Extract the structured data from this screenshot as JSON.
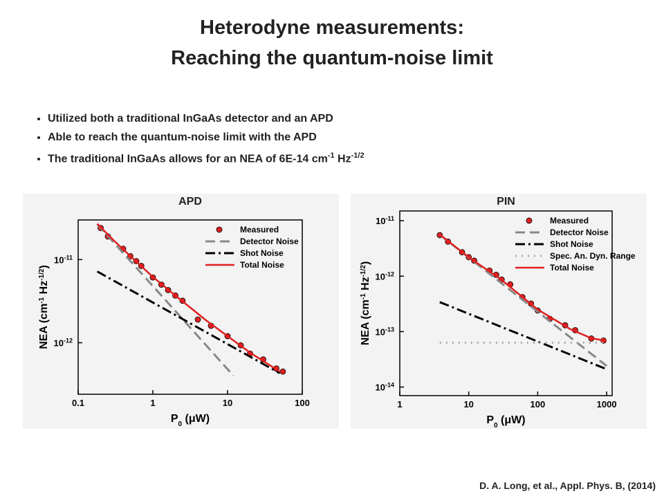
{
  "title": [
    "Heterodyne measurements:",
    "Reaching the quantum-noise limit"
  ],
  "bullets": [
    [
      {
        "text": "Utilized both a traditional InGaAs detector and an APD"
      }
    ],
    [
      {
        "text": "Able to reach the quantum-noise limit with the APD"
      }
    ],
    [
      {
        "text": "The traditional InGaAs allows for an NEA of 6E-14 cm"
      },
      {
        "text": "-1",
        "shift": "super"
      },
      {
        "text": " Hz"
      },
      {
        "text": "-1/2",
        "shift": "super"
      }
    ]
  ],
  "citation": "D. A. Long, et al., Appl. Phys. B, (2014)",
  "chart_data": [
    {
      "type": "line",
      "title": "APD",
      "log_x": true,
      "log_y": true,
      "legend": "upper right",
      "xlabel": [
        {
          "text": "P"
        },
        {
          "text": "0",
          "shift": "sub"
        },
        {
          "text": " (μW)"
        }
      ],
      "ylabel": [
        {
          "text": "NEA (cm"
        },
        {
          "text": "-1",
          "shift": "super"
        },
        {
          "text": " Hz"
        },
        {
          "text": "-1/2",
          "shift": "super"
        },
        {
          "text": ")"
        }
      ],
      "xlim": [
        0.1,
        100
      ],
      "ylim": [
        2.4e-13,
        3e-11
      ],
      "xticks": [
        0.1,
        1,
        10,
        100
      ],
      "yticks": [
        {
          "value": 1e-11,
          "label": "10",
          "exponent": "-11"
        },
        {
          "value": 1e-12,
          "label": "10",
          "exponent": "-12"
        }
      ],
      "series": [
        {
          "name": "Measured",
          "style": "points",
          "color": "#e02020",
          "x": [
            0.2,
            0.25,
            0.4,
            0.5,
            0.6,
            0.7,
            1,
            1.3,
            1.6,
            2,
            2.5,
            4,
            6,
            10,
            15,
            20,
            30,
            45,
            55
          ],
          "values": [
            2.4e-11,
            1.9e-11,
            1.35e-11,
            1.1e-11,
            9.6e-12,
            8.4e-12,
            6.1e-12,
            5e-12,
            4.3e-12,
            3.7e-12,
            3.2e-12,
            1.9e-12,
            1.6e-12,
            1.2e-12,
            9.3e-13,
            7.4e-13,
            6.3e-13,
            4.9e-13,
            4.5e-13
          ]
        },
        {
          "name": "Detector Noise",
          "style": "dashed",
          "color": "#888888",
          "x": [
            0.18,
            12
          ],
          "values": [
            2.67e-11,
            4e-13
          ]
        },
        {
          "name": "Shot Noise",
          "style": "dashdot",
          "color": "#000000",
          "x": [
            0.18,
            50
          ],
          "values": [
            7.2e-12,
            4.3e-13
          ]
        },
        {
          "name": "Total Noise",
          "style": "solid",
          "color": "#e02020",
          "x": [
            0.18,
            0.3,
            0.5,
            1,
            2,
            5,
            10,
            20,
            50
          ],
          "values": [
            2.7e-11,
            1.7e-11,
            1.1e-11,
            6.2e-12,
            3.7e-12,
            1.9e-12,
            1.2e-12,
            7.6e-13,
            4.5e-13
          ]
        }
      ]
    },
    {
      "type": "line",
      "title": "PIN",
      "log_x": true,
      "log_y": true,
      "legend": "upper right",
      "xlabel": [
        {
          "text": "P"
        },
        {
          "text": "0",
          "shift": "sub"
        },
        {
          "text": " (μW)"
        }
      ],
      "ylabel": [
        {
          "text": "NEA (cm"
        },
        {
          "text": "-1",
          "shift": "super"
        },
        {
          "text": " Hz"
        },
        {
          "text": "-1/2",
          "shift": "super"
        },
        {
          "text": ")"
        }
      ],
      "xlim": [
        1,
        1200
      ],
      "ylim": [
        7e-15,
        1.5e-11
      ],
      "xticks": [
        1,
        10,
        100,
        1000
      ],
      "yticks": [
        {
          "value": 1e-11,
          "label": "10",
          "exponent": "-11"
        },
        {
          "value": 1e-12,
          "label": "10",
          "exponent": "-12"
        },
        {
          "value": 1e-13,
          "label": "10",
          "exponent": "-13"
        },
        {
          "value": 1e-14,
          "label": "10",
          "exponent": "-14"
        }
      ],
      "series": [
        {
          "name": "Measured",
          "style": "points",
          "color": "#e02020",
          "x": [
            3.8,
            5,
            8,
            10,
            12,
            20,
            25,
            30,
            40,
            60,
            80,
            100,
            150,
            250,
            350,
            600,
            900
          ],
          "values": [
            5.5e-12,
            4.2e-12,
            2.7e-12,
            2.2e-12,
            1.9e-12,
            1.26e-12,
            1.06e-12,
            8.7e-13,
            7.1e-13,
            4.2e-13,
            3.2e-13,
            2.4e-13,
            1.7e-13,
            1.3e-13,
            1.06e-13,
            7.5e-14,
            6.9e-14
          ]
        },
        {
          "name": "Detector Noise",
          "style": "dashed",
          "color": "#888888",
          "x": [
            3.8,
            1000
          ],
          "values": [
            5.6e-12,
            2.4e-14
          ]
        },
        {
          "name": "Shot Noise",
          "style": "dashdot",
          "color": "#000000",
          "x": [
            3.8,
            1000
          ],
          "values": [
            3.4e-13,
            2.1e-14
          ]
        },
        {
          "name": "Spec. An. Dyn. Range",
          "style": "dotted",
          "color": "#aaaaaa",
          "x": [
            3.8,
            1000
          ],
          "values": [
            6.3e-14,
            6.3e-14
          ]
        },
        {
          "name": "Total Noise",
          "style": "solid",
          "color": "#e02020",
          "x": [
            3.8,
            10,
            30,
            100,
            300,
            600,
            1000
          ],
          "values": [
            5.6e-12,
            2.2e-12,
            8.5e-13,
            2.5e-13,
            1.1e-13,
            7.6e-14,
            6.8e-14
          ]
        }
      ]
    }
  ]
}
